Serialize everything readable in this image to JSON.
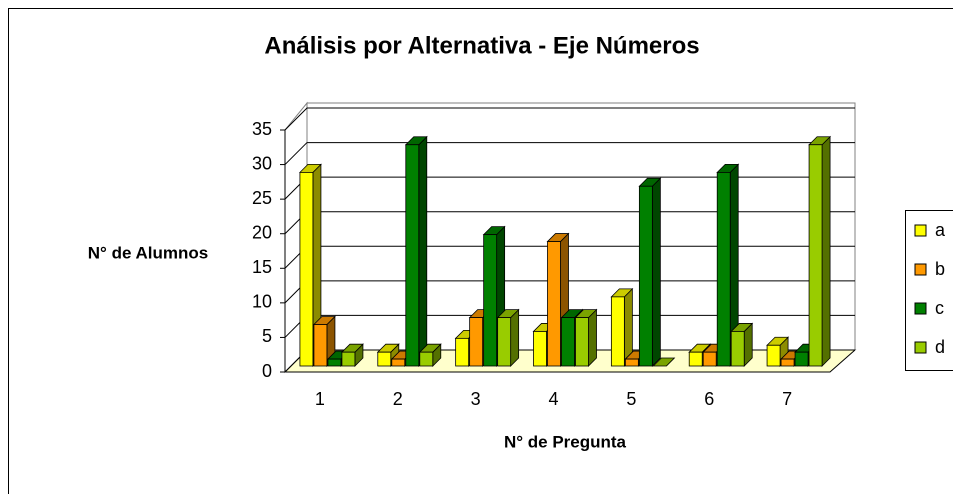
{
  "chart_data": {
    "type": "bar3d",
    "title": "Análisis por Alternativa - Eje Números",
    "categories": [
      "1",
      "2",
      "3",
      "4",
      "5",
      "6",
      "7"
    ],
    "series": [
      {
        "name": "a",
        "color": "#ffff00",
        "values": [
          28,
          2,
          4,
          5,
          10,
          2,
          3
        ]
      },
      {
        "name": "b",
        "color": "#ff9900",
        "values": [
          6,
          1,
          7,
          18,
          1,
          2,
          1
        ]
      },
      {
        "name": "c",
        "color": "#008000",
        "values": [
          1,
          32,
          19,
          7,
          26,
          28,
          2
        ]
      },
      {
        "name": "d",
        "color": "#99cc00",
        "values": [
          2,
          2,
          7,
          7,
          0,
          5,
          32
        ]
      }
    ],
    "ylim": [
      0,
      35
    ],
    "yticks": [
      0,
      5,
      10,
      15,
      20,
      25,
      30,
      35
    ],
    "y_label": "N° de Alumnos",
    "x_label": "N° de Pregunta",
    "grid": true,
    "legend": "right"
  }
}
